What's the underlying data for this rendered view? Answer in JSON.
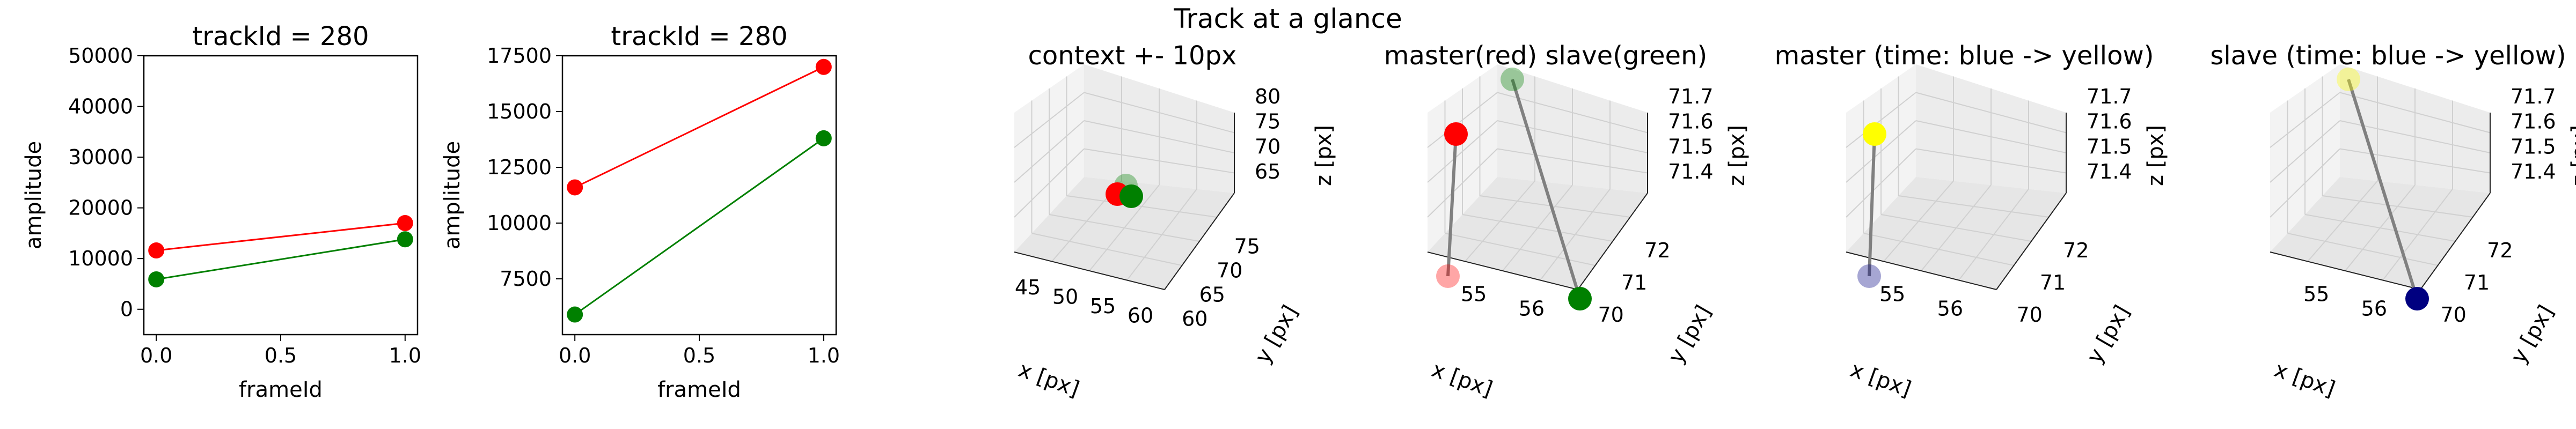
{
  "figure": {
    "suptitle": "Track at a glance"
  },
  "colors": {
    "master": "#ff0000",
    "slave": "#008000",
    "line3d": "#808080",
    "time_start": "#000080",
    "time_end": "#ffff00",
    "pane": "#f2f2f2",
    "grid": "#d0d0d0"
  },
  "chart_data": [
    {
      "type": "line",
      "title": "trackId = 280",
      "xlabel": "frameId",
      "ylabel": "amplitude",
      "xlim": [
        -0.05,
        1.05
      ],
      "ylim": [
        -5000,
        50000
      ],
      "xticks": [
        0.0,
        0.5,
        1.0
      ],
      "xtick_labels": [
        "0.0",
        "0.5",
        "1.0"
      ],
      "yticks": [
        0,
        10000,
        20000,
        30000,
        40000,
        50000
      ],
      "ytick_labels": [
        "0",
        "10000",
        "20000",
        "30000",
        "40000",
        "50000"
      ],
      "x": [
        0,
        1
      ],
      "series": [
        {
          "values": [
            11600,
            17000
          ],
          "color": "#ff0000"
        },
        {
          "values": [
            5900,
            13800
          ],
          "color": "#008000"
        }
      ]
    },
    {
      "type": "line",
      "title": "trackId = 280",
      "xlabel": "frameId",
      "ylabel": "amplitude",
      "xlim": [
        -0.05,
        1.05
      ],
      "ylim": [
        5000,
        17500
      ],
      "xticks": [
        0.0,
        0.5,
        1.0
      ],
      "xtick_labels": [
        "0.0",
        "0.5",
        "1.0"
      ],
      "yticks": [
        7500,
        10000,
        12500,
        15000,
        17500
      ],
      "ytick_labels": [
        "7500",
        "10000",
        "12500",
        "15000",
        "17500"
      ],
      "x": [
        0,
        1
      ],
      "series": [
        {
          "values": [
            11600,
            17000
          ],
          "color": "#ff0000"
        },
        {
          "values": [
            5900,
            13800
          ],
          "color": "#008000"
        }
      ]
    },
    {
      "type": "scatter",
      "title": "context +- 10px",
      "xlabel": "x [px]",
      "ylabel": "y [px]",
      "zlabel": "z [px]",
      "xtick_labels": [
        "45",
        "50",
        "55",
        "60"
      ],
      "ytick_labels": [
        "60",
        "65",
        "70",
        "75"
      ],
      "ztick_labels": [
        "65",
        "70",
        "75",
        "80"
      ],
      "points": [
        {
          "x": 55,
          "y": 71,
          "z": 71.6,
          "color": "#008000",
          "alpha": 0.35
        },
        {
          "x": 54,
          "y": 71,
          "z": 71.4,
          "color": "#ff0000",
          "alpha": 1.0
        },
        {
          "x": 55.5,
          "y": 71.5,
          "z": 71.5,
          "color": "#008000",
          "alpha": 1.0
        }
      ]
    },
    {
      "type": "scatter",
      "title": "master(red) slave(green)",
      "xlabel": "x [px]",
      "ylabel": "y [px]",
      "zlabel": "z [px]",
      "xtick_labels": [
        "55",
        "56"
      ],
      "ytick_labels": [
        "70",
        "71",
        "72"
      ],
      "ztick_labels": [
        "71.4",
        "71.5",
        "71.6",
        "71.7"
      ],
      "points": [
        {
          "color": "#ff0000",
          "alpha": 0.35
        },
        {
          "color": "#ff0000",
          "alpha": 1.0
        },
        {
          "color": "#008000",
          "alpha": 0.35
        },
        {
          "color": "#008000",
          "alpha": 1.0
        }
      ]
    },
    {
      "type": "scatter",
      "title": "master (time: blue -> yellow)",
      "xlabel": "x [px]",
      "ylabel": "y [px]",
      "zlabel": "z [px]",
      "xtick_labels": [
        "55",
        "56"
      ],
      "ytick_labels": [
        "70",
        "71",
        "72"
      ],
      "ztick_labels": [
        "71.4",
        "71.5",
        "71.6",
        "71.7"
      ],
      "points": [
        {
          "color": "#000080",
          "alpha": 0.35
        },
        {
          "color": "#ffff00",
          "alpha": 1.0
        }
      ]
    },
    {
      "type": "scatter",
      "title": "slave (time: blue -> yellow)",
      "xlabel": "x [px]",
      "ylabel": "y [px]",
      "zlabel": "z [px]",
      "xtick_labels": [
        "55",
        "56"
      ],
      "ytick_labels": [
        "70",
        "71",
        "72"
      ],
      "ztick_labels": [
        "71.4",
        "71.5",
        "71.6",
        "71.7"
      ],
      "points": [
        {
          "color": "#ffff00",
          "alpha": 0.35
        },
        {
          "color": "#000080",
          "alpha": 1.0
        }
      ]
    }
  ]
}
